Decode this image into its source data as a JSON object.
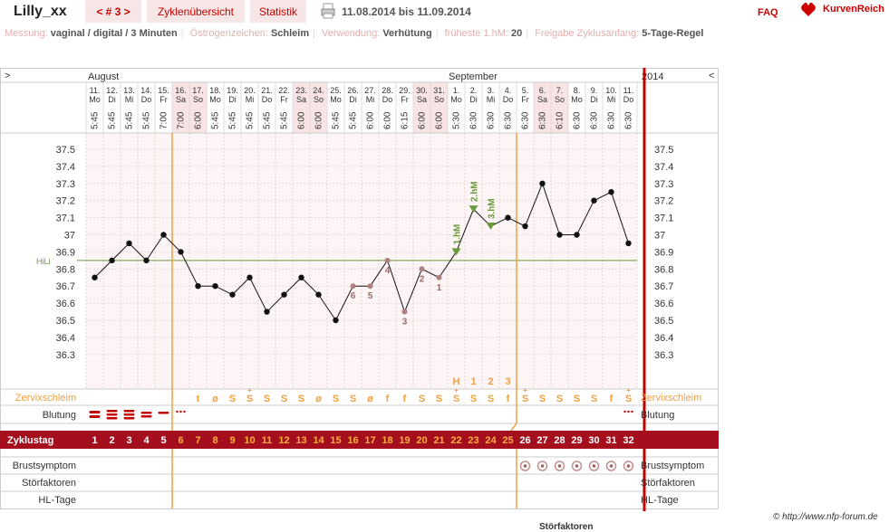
{
  "header": {
    "title": "Lilly_xx",
    "cycle_nav": "< # 3 >",
    "tab_overview": "Zyklenübersicht",
    "tab_stats": "Statistik",
    "print_icon": "printer-icon",
    "date_range": "11.08.2014 bis 11.09.2014",
    "faq": "FAQ",
    "brand": "KurvenReich",
    "brand_icon": "heart-logo-icon"
  },
  "info": [
    {
      "label": "Messung:",
      "value": "vaginal / digital / 3 Minuten"
    },
    {
      "label": "Östrogenzeichen:",
      "value": "Schleim"
    },
    {
      "label": "Verwendung:",
      "value": "Verhütung"
    },
    {
      "label": "früheste 1.hM:",
      "value": "20"
    },
    {
      "label": "Freigabe Zyklusanfang:",
      "value": "5-Tage-Regel"
    }
  ],
  "chart": {
    "nav_prev": ">",
    "nav_next": "<",
    "month1": "August",
    "month2": "September",
    "year": "2014",
    "hili_label": "HiLi",
    "hili_value": 36.85,
    "coverline_after_day": 5,
    "evaluation_day": 25,
    "y_ticks": [
      "37.5",
      "37.4",
      "37.3",
      "37.2",
      "37.1",
      "37",
      "36.9",
      "36.8",
      "36.7",
      "36.6",
      "36.5",
      "36.4",
      "36.3"
    ],
    "days": [
      {
        "date": "11.",
        "wd": "Mo",
        "time": "5:45",
        "temp": 36.75,
        "cm": "",
        "bl": "heavy",
        "cd": "1"
      },
      {
        "date": "12.",
        "wd": "Di",
        "time": "5:45",
        "temp": 36.85,
        "cm": "",
        "bl": "heavy2",
        "cd": "2"
      },
      {
        "date": "13.",
        "wd": "Mi",
        "time": "5:45",
        "temp": 36.95,
        "cm": "",
        "bl": "heavy2",
        "cd": "3"
      },
      {
        "date": "14.",
        "wd": "Do",
        "time": "5:45",
        "temp": 36.85,
        "cm": "",
        "bl": "medium",
        "cd": "4"
      },
      {
        "date": "15.",
        "wd": "Fr",
        "time": "7:00",
        "temp": 37.0,
        "cm": "",
        "bl": "light",
        "cd": "5"
      },
      {
        "date": "16.",
        "wd": "Sa",
        "time": "7:00",
        "temp": 36.9,
        "cm": "",
        "bl": "spot",
        "cd": "6",
        "we": true
      },
      {
        "date": "17.",
        "wd": "So",
        "time": "6:00",
        "temp": 36.7,
        "cm": "t",
        "bl": "",
        "cd": "7",
        "we": true
      },
      {
        "date": "18.",
        "wd": "Mo",
        "time": "5:45",
        "temp": 36.7,
        "cm": "ø",
        "bl": "",
        "cd": "8"
      },
      {
        "date": "19.",
        "wd": "Di",
        "time": "5:45",
        "temp": 36.65,
        "cm": "S",
        "bl": "",
        "cd": "9"
      },
      {
        "date": "20.",
        "wd": "Mi",
        "time": "5:45",
        "temp": 36.75,
        "cm": "S+",
        "bl": "",
        "cd": "10"
      },
      {
        "date": "21.",
        "wd": "Do",
        "time": "5:45",
        "temp": 36.55,
        "cm": "S",
        "bl": "",
        "cd": "11"
      },
      {
        "date": "22.",
        "wd": "Fr",
        "time": "5:45",
        "temp": 36.65,
        "cm": "S",
        "bl": "",
        "cd": "12"
      },
      {
        "date": "23.",
        "wd": "Sa",
        "time": "6:00",
        "temp": 36.75,
        "cm": "S",
        "bl": "",
        "cd": "13",
        "we": true
      },
      {
        "date": "24.",
        "wd": "So",
        "time": "6:00",
        "temp": 36.65,
        "cm": "ø",
        "bl": "",
        "cd": "14",
        "we": true
      },
      {
        "date": "25.",
        "wd": "Mo",
        "time": "5:45",
        "temp": 36.5,
        "cm": "S",
        "bl": "",
        "cd": "15"
      },
      {
        "date": "26.",
        "wd": "Di",
        "time": "5:45",
        "temp": 36.7,
        "cm": "S",
        "bl": "",
        "cd": "16",
        "lbl": "6"
      },
      {
        "date": "27.",
        "wd": "Mi",
        "time": "6:00",
        "temp": 36.7,
        "cm": "ø",
        "bl": "",
        "cd": "17",
        "lbl": "5"
      },
      {
        "date": "28.",
        "wd": "Do",
        "time": "6:00",
        "temp": 36.85,
        "cm": "f",
        "bl": "",
        "cd": "18",
        "lbl": "4"
      },
      {
        "date": "29.",
        "wd": "Fr",
        "time": "6:15",
        "temp": 36.55,
        "cm": "f",
        "bl": "",
        "cd": "19",
        "lbl": "3"
      },
      {
        "date": "30.",
        "wd": "Sa",
        "time": "6:00",
        "temp": 36.8,
        "cm": "S",
        "bl": "",
        "cd": "20",
        "lbl": "2",
        "we": true
      },
      {
        "date": "31.",
        "wd": "So",
        "time": "6:00",
        "temp": 36.75,
        "cm": "S",
        "bl": "",
        "cd": "21",
        "lbl": "1",
        "we": true
      },
      {
        "date": "1.",
        "wd": "Mo",
        "time": "5:30",
        "temp": 36.9,
        "cm": "S+",
        "bl": "",
        "cd": "22",
        "hm": "1.hM",
        "top": "H"
      },
      {
        "date": "2.",
        "wd": "Di",
        "time": "6:30",
        "temp": 37.15,
        "cm": "S",
        "bl": "",
        "cd": "23",
        "hm": "2.hM",
        "top": "1"
      },
      {
        "date": "3.",
        "wd": "Mi",
        "time": "6:30",
        "temp": 37.05,
        "cm": "S",
        "bl": "",
        "cd": "24",
        "hm": "3.hM",
        "top": "2"
      },
      {
        "date": "4.",
        "wd": "Do",
        "time": "6:30",
        "temp": 37.1,
        "cm": "f",
        "bl": "",
        "cd": "25",
        "top": "3"
      },
      {
        "date": "5.",
        "wd": "Fr",
        "time": "6:30",
        "temp": 37.05,
        "cm": "S+",
        "bl": "",
        "cd": "26",
        "br": true
      },
      {
        "date": "6.",
        "wd": "Sa",
        "time": "6:30",
        "temp": 37.3,
        "cm": "S",
        "bl": "",
        "cd": "27",
        "br": true,
        "we": true
      },
      {
        "date": "7.",
        "wd": "So",
        "time": "6:10",
        "temp": 37.0,
        "cm": "S",
        "bl": "",
        "cd": "28",
        "br": true,
        "we": true
      },
      {
        "date": "8.",
        "wd": "Mo",
        "time": "6:30",
        "temp": 37.0,
        "cm": "S",
        "bl": "",
        "cd": "29",
        "br": true
      },
      {
        "date": "9.",
        "wd": "Di",
        "time": "6:30",
        "temp": 37.2,
        "cm": "S",
        "bl": "",
        "cd": "30",
        "br": true
      },
      {
        "date": "10.",
        "wd": "Mi",
        "time": "6:30",
        "temp": 37.25,
        "cm": "f",
        "bl": "",
        "cd": "31",
        "br": true
      },
      {
        "date": "11.",
        "wd": "Do",
        "time": "6:30",
        "temp": 36.95,
        "cm": "S+",
        "bl": "spot",
        "cd": "32",
        "br": true
      }
    ],
    "rows": {
      "cervix": "Zervixschleim",
      "bleeding": "Blutung",
      "cycleday": "Zyklustag",
      "breast": "Brustsymptom",
      "disturb": "Störfaktoren",
      "hl": "HL-Tage"
    },
    "colors": {
      "accent": "#c00000",
      "orange": "#f0a040",
      "green": "#6a9a3c",
      "weekend": "#f8e4e4",
      "bar": "#a50e1c",
      "cycleday_text": "#ffffff",
      "cycleday_orange": "#ffb040"
    }
  },
  "footer": {
    "copyright": "© http://www.nfp-forum.de",
    "cut_label": "Störfaktoren"
  }
}
